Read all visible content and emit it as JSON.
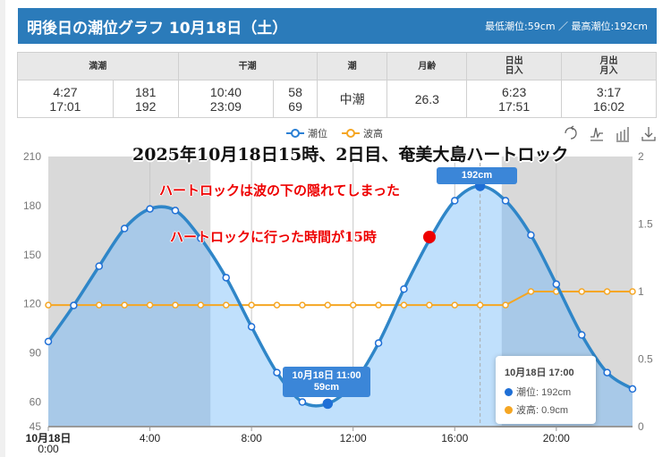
{
  "header": {
    "title": "明後日の潮位グラフ 10月18日（土）",
    "minmax": "最低潮位:59cm ／ 最高潮位:192cm"
  },
  "table": {
    "headers": [
      "満潮",
      "干潮",
      "潮",
      "月齢",
      "日出\n日入",
      "月出\n月入"
    ],
    "high_times": "4:27\n17:01",
    "high_levels": "181\n192",
    "low_times": "10:40\n23:09",
    "low_levels": "58\n69",
    "tide": "中潮",
    "moon_age": "26.3",
    "sun": "6:23\n17:51",
    "moon": "3:17\n16:02"
  },
  "legend": [
    {
      "name": "潮位",
      "color": "#2a7fd4"
    },
    {
      "name": "波高",
      "color": "#f5a623"
    }
  ],
  "toolbox": [
    "refresh-icon",
    "line-chart-icon",
    "bar-chart-icon",
    "download-icon"
  ],
  "overlay": {
    "title": "2025年10月18日15時、2日目、奄美大島ハートロック",
    "note1": "ハートロックは波の下の隠れてしまった",
    "note2": "ハートロックに行った時間が15時",
    "marker_color": "#e00000"
  },
  "labels": {
    "low": "10月18日 11:00\n59cm",
    "high": "192cm"
  },
  "tooltip": {
    "title": "10月18日 17:00",
    "tide": "潮位: 192cm",
    "wave": "波高: 0.9cm"
  },
  "chart_data": {
    "type": "line",
    "x": [
      "0:00",
      "1:00",
      "2:00",
      "3:00",
      "4:00",
      "5:00",
      "6:00",
      "7:00",
      "8:00",
      "9:00",
      "10:00",
      "11:00",
      "12:00",
      "13:00",
      "14:00",
      "15:00",
      "16:00",
      "17:00",
      "18:00",
      "19:00",
      "20:00",
      "21:00",
      "22:00",
      "23:00"
    ],
    "xticks": [
      "10月18日\n0:00",
      "4:00",
      "8:00",
      "12:00",
      "16:00",
      "20:00"
    ],
    "series": [
      {
        "name": "潮位",
        "axis": "left",
        "values": [
          97,
          119,
          143,
          166,
          178,
          177,
          160,
          136,
          106,
          78,
          60,
          59,
          71,
          96,
          129,
          159,
          183,
          192,
          183,
          162,
          132,
          101,
          78,
          68
        ]
      },
      {
        "name": "波高",
        "axis": "right",
        "values": [
          0.9,
          0.9,
          0.9,
          0.9,
          0.9,
          0.9,
          0.9,
          0.9,
          0.9,
          0.9,
          0.9,
          0.9,
          0.9,
          0.9,
          0.9,
          0.9,
          0.9,
          0.9,
          0.9,
          1.0,
          1.0,
          1.0,
          1.0,
          1.0
        ]
      }
    ],
    "yleft": {
      "ticks": [
        45,
        60,
        90,
        120,
        150,
        180,
        210
      ],
      "range": [
        45,
        210
      ]
    },
    "yright": {
      "ticks": [
        0,
        0.5,
        1,
        1.5,
        2
      ],
      "range": [
        0,
        2
      ]
    },
    "sunrise_hour": 6.383,
    "sunset_hour": 17.85,
    "grid": true
  }
}
